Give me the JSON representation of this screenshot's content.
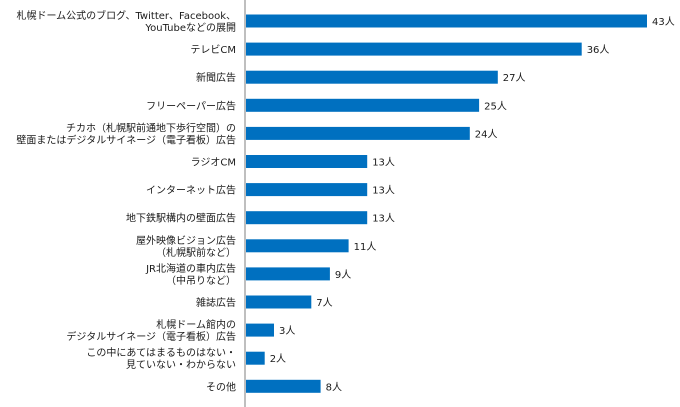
{
  "chart_data": {
    "type": "bar",
    "orientation": "horizontal",
    "unit": "人",
    "categories": [
      [
        "札幌ドーム公式のブログ、Twitter、Facebook、",
        "YouTubeなどの展開"
      ],
      [
        "テレビCM"
      ],
      [
        "新聞広告"
      ],
      [
        "フリーペーパー広告"
      ],
      [
        "チカホ（札幌駅前通地下歩行空間）の",
        "壁面またはデジタルサイネージ（電子看板）広告"
      ],
      [
        "ラジオCM"
      ],
      [
        "インターネット広告"
      ],
      [
        "地下鉄駅構内の壁面広告"
      ],
      [
        "屋外映像ビジョン広告",
        "（札幌駅前など）"
      ],
      [
        "JR北海道の車内広告",
        "（中吊りなど）"
      ],
      [
        "雑誌広告"
      ],
      [
        "札幌ドーム館内の",
        "デジタルサイネージ（電子看板）広告"
      ],
      [
        "この中にあてはまるものはない・",
        "見ていない・わからない"
      ],
      [
        "その他"
      ]
    ],
    "values": [
      43,
      36,
      27,
      25,
      24,
      13,
      13,
      13,
      11,
      9,
      7,
      3,
      2,
      8
    ],
    "value_labels": [
      "43人",
      "36人",
      "27人",
      "25人",
      "24人",
      "13人",
      "13人",
      "13人",
      "11人",
      "9人",
      "7人",
      "3人",
      "2人",
      "8人"
    ],
    "xlim": [
      0,
      43
    ],
    "bar_color": "#0070c0",
    "axis_color": "#7f7f7f"
  }
}
